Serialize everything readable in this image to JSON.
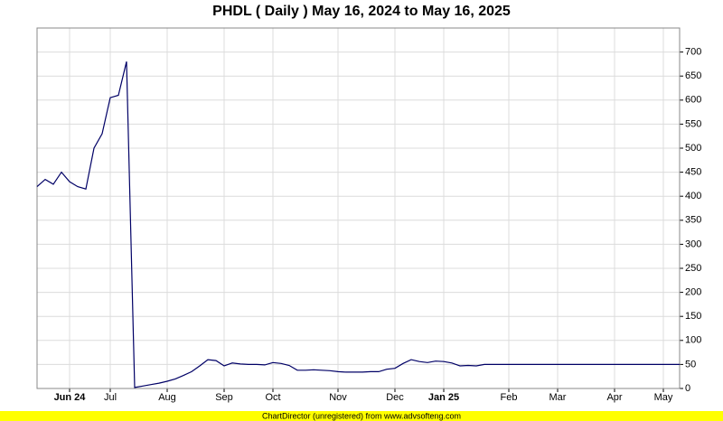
{
  "chart_data": {
    "type": "line",
    "title": "PHDL ( Daily ) May 16, 2024 to May 16, 2025",
    "categories": [
      null,
      null,
      null,
      null,
      "Jun 24",
      null,
      null,
      null,
      null,
      "Jul",
      null,
      null,
      null,
      null,
      null,
      null,
      "Aug",
      null,
      null,
      null,
      null,
      null,
      null,
      "Sep",
      null,
      null,
      null,
      null,
      null,
      "Oct",
      null,
      null,
      null,
      null,
      null,
      null,
      null,
      "Nov",
      null,
      null,
      null,
      null,
      null,
      null,
      "Dec",
      null,
      null,
      null,
      null,
      null,
      "Jan 25",
      null,
      null,
      null,
      null,
      null,
      null,
      null,
      "Feb",
      null,
      null,
      null,
      null,
      null,
      "Mar",
      null,
      null,
      null,
      null,
      null,
      null,
      "Apr",
      null,
      null,
      null,
      null,
      null,
      "May",
      null,
      null
    ],
    "series": [
      {
        "color": "#000066",
        "values": [
          420,
          435,
          425,
          450,
          430,
          420,
          415,
          500,
          530,
          605,
          610,
          680,
          2,
          5,
          8,
          11,
          15,
          20,
          27,
          35,
          47,
          60,
          58,
          47,
          53,
          51,
          50,
          50,
          49,
          54,
          52,
          48,
          38,
          38,
          39,
          38,
          37,
          35,
          34,
          34,
          34,
          35,
          35,
          40,
          42,
          52,
          60,
          56,
          54,
          57,
          56,
          53,
          47,
          48,
          47,
          50,
          50,
          50,
          50,
          50,
          50,
          50,
          50,
          50,
          50,
          50,
          50,
          50,
          50,
          50,
          50,
          50,
          50,
          50,
          50,
          50,
          50,
          50,
          50,
          50
        ]
      }
    ],
    "ylim": [
      0,
      750
    ],
    "yticks": [
      0,
      50,
      100,
      150,
      200,
      250,
      300,
      350,
      400,
      450,
      500,
      550,
      600,
      650,
      700
    ],
    "grid": true
  },
  "footer": "ChartDirector (unregistered) from www.advsofteng.com"
}
